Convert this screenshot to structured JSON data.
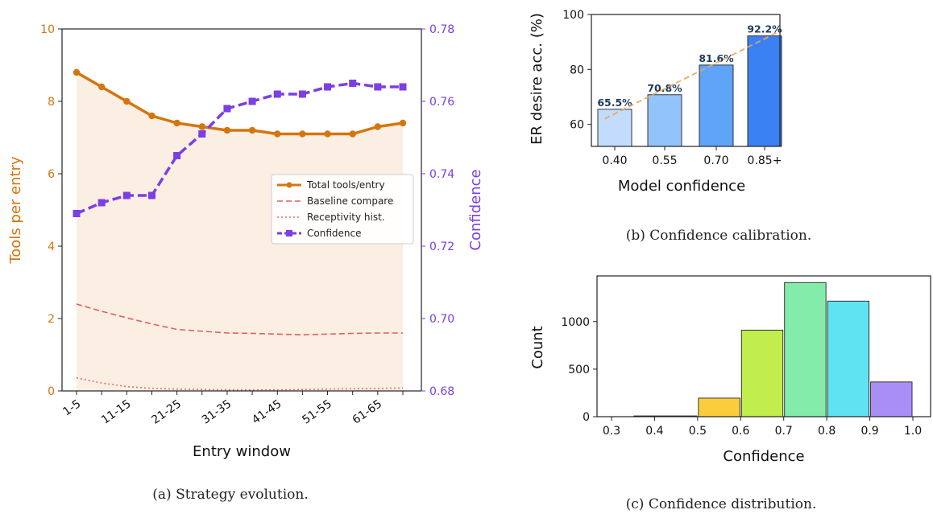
{
  "chart_data": [
    {
      "type": "line",
      "caption": "(a) Strategy evolution.",
      "xlabel": "Entry window",
      "ylabel_left": "Tools per entry",
      "ylabel_right": "Confidence",
      "x_tick_labels": [
        "1-5",
        "11-15",
        "21-25",
        "31-35",
        "41-45",
        "51-55",
        "61-65"
      ],
      "ylim_left": [
        0,
        10
      ],
      "ylim_right": [
        0.68,
        0.78
      ],
      "y_ticks_left": [
        "0",
        "2",
        "4",
        "6",
        "8",
        "10"
      ],
      "y_ticks_right": [
        "0.68",
        "0.70",
        "0.72",
        "0.74",
        "0.76",
        "0.78"
      ],
      "legend_position": "center-right",
      "colors": {
        "total": "#d4750f",
        "baseline": "#e0605a",
        "receptivity": "#e07070",
        "confidence": "#7b3fe4",
        "fill": "#fbeee3"
      },
      "series": [
        {
          "name": "Total tools/entry",
          "axis": "left",
          "values": [
            8.8,
            8.4,
            8.0,
            7.6,
            7.4,
            7.3,
            7.2,
            7.2,
            7.1,
            7.1,
            7.1,
            7.1,
            7.3,
            7.4
          ]
        },
        {
          "name": "Baseline compare",
          "axis": "left",
          "values": [
            2.4,
            2.2,
            2.02,
            1.85,
            1.7,
            1.65,
            1.6,
            1.59,
            1.57,
            1.55,
            1.57,
            1.59,
            1.6,
            1.6
          ]
        },
        {
          "name": "Receptivity hist.",
          "axis": "left",
          "values": [
            0.36,
            0.22,
            0.12,
            0.07,
            0.05,
            0.04,
            0.03,
            0.03,
            0.03,
            0.04,
            0.05,
            0.06,
            0.07,
            0.08
          ]
        },
        {
          "name": "Confidence",
          "axis": "right",
          "values": [
            0.729,
            0.732,
            0.734,
            0.734,
            0.745,
            0.751,
            0.758,
            0.76,
            0.762,
            0.762,
            0.764,
            0.765,
            0.764,
            0.764
          ]
        }
      ]
    },
    {
      "type": "bar",
      "caption": "(b) Confidence calibration.",
      "xlabel": "Model confidence",
      "ylabel": "ER desire acc. (%)",
      "categories": [
        "0.40",
        "0.55",
        "0.70",
        "0.85+"
      ],
      "values": [
        65.5,
        70.8,
        81.6,
        92.2
      ],
      "data_labels": [
        "65.5%",
        "70.8%",
        "81.6%",
        "92.2%"
      ],
      "ylim": [
        52,
        100
      ],
      "y_ticks": [
        "60",
        "80",
        "100"
      ],
      "trendline": true,
      "colors": [
        "#c3dcfd",
        "#93c3fb",
        "#5fa4f8",
        "#3a81f3"
      ]
    },
    {
      "type": "bar",
      "caption": "(c) Confidence distribution.",
      "xlabel": "Confidence",
      "ylabel": "Count",
      "bin_edges": [
        0.35,
        0.5,
        0.6,
        0.7,
        0.8,
        0.9,
        1.0
      ],
      "values": [
        8,
        195,
        910,
        1410,
        1215,
        365
      ],
      "xlim": [
        0.3,
        1.0
      ],
      "ylim": [
        0,
        1480
      ],
      "x_ticks": [
        "0.3",
        "0.4",
        "0.5",
        "0.6",
        "0.7",
        "0.8",
        "0.9",
        "1.0"
      ],
      "y_ticks": [
        "0",
        "500",
        "1000"
      ],
      "colors": [
        "#f9a825",
        "#fbcd3c",
        "#c1ee4c",
        "#84ecab",
        "#5fe3f3",
        "#a98ef6"
      ]
    }
  ]
}
